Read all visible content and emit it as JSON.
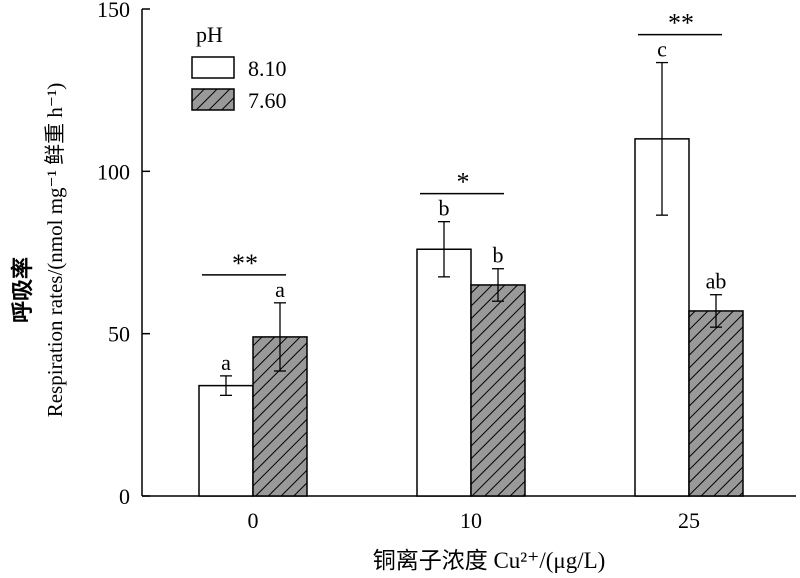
{
  "chart_data": {
    "type": "bar",
    "title": "",
    "xlabel": "铜离子浓度 Cu²⁺/(μg/L)",
    "ylabel_zh": "呼吸率",
    "ylabel": "Respiration rates/(nmol mg⁻¹ 鲜重 h⁻¹)",
    "categories": [
      "0",
      "10",
      "25"
    ],
    "ylim": [
      0,
      150
    ],
    "yticks": [
      "0",
      "50",
      "100",
      "150"
    ],
    "legend": {
      "title": "pH",
      "placement": "top-left"
    },
    "series": [
      {
        "name": "8.10",
        "fill": "#ffffff",
        "pattern": "none",
        "values": [
          34,
          76,
          110
        ],
        "errors": [
          3,
          8.5,
          23.5
        ],
        "labels": [
          "a",
          "b",
          "c"
        ]
      },
      {
        "name": "7.60",
        "fill": "#999999",
        "pattern": "diagonal-hatch",
        "values": [
          49,
          65,
          57
        ],
        "errors": [
          10.5,
          5,
          5
        ],
        "labels": [
          "a",
          "b",
          "ab"
        ]
      }
    ],
    "significance": [
      "**",
      "*",
      "**"
    ]
  }
}
